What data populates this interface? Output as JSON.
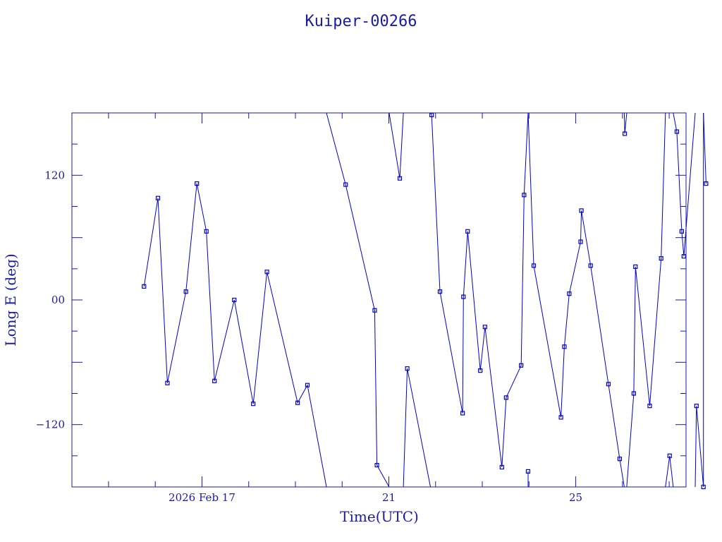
{
  "chart_data": {
    "type": "line",
    "title": "Kuiper-00266",
    "xlabel": "Time(UTC)",
    "ylabel": "Long E (deg)",
    "x_unit": "days",
    "xlim": [
      "2026-02-14 05:11",
      "2026-02-27 08:40"
    ],
    "ylim": [
      -180,
      180
    ],
    "y_ticks": [
      -120,
      0,
      120
    ],
    "y_tick_labels": [
      "−120",
      "00",
      "120"
    ],
    "x_tick_labels": [
      {
        "label": "2026 Feb 17",
        "date": "2026-02-17 00:00"
      },
      {
        "label": "21",
        "date": "2026-02-21 00:00"
      },
      {
        "label": "25",
        "date": "2026-02-25 00:00"
      }
    ],
    "x_minor_ticks": [
      "2026-02-15 00:00",
      "2026-02-16 00:00",
      "2026-02-18 00:00",
      "2026-02-19 00:00",
      "2026-02-20 00:00",
      "2026-02-22 00:00",
      "2026-02-23 00:00",
      "2026-02-24 00:00",
      "2026-02-26 00:00",
      "2026-02-27 00:00"
    ],
    "grid": false,
    "colors": {
      "axis": "#1a1aa6",
      "series": "#0000cc",
      "background": "#ffffff"
    },
    "series": [
      {
        "points": [
          [
            "2026-02-15 18:14",
            13
          ],
          [
            "2026-02-16 01:23",
            98
          ],
          [
            "2026-02-16 06:14",
            -80
          ],
          [
            "2026-02-16 15:45",
            8
          ],
          [
            "2026-02-16 21:22",
            112
          ],
          [
            "2026-02-17 02:16",
            66
          ],
          [
            "2026-02-17 06:25",
            -78
          ],
          [
            "2026-02-17 16:36",
            0
          ],
          [
            "2026-02-18 02:20",
            -100
          ],
          [
            "2026-02-18 09:22",
            27
          ],
          [
            "2026-02-19 01:08",
            -99
          ],
          [
            "2026-02-19 06:09",
            -82
          ],
          {
            "x": "2026-02-19 15:57",
            "y": -180,
            "break_after": true
          },
          {
            "x": "2026-02-19 15:57",
            "y": 180
          },
          [
            "2026-02-20 01:48",
            111
          ],
          [
            "2026-02-20 16:44",
            -10
          ],
          [
            "2026-02-20 17:52",
            -159
          ],
          {
            "x": "2026-02-21 00:09",
            "y": -180,
            "break_after": true
          },
          {
            "x": "2026-02-21 00:09",
            "y": 180
          },
          [
            "2026-02-21 05:37",
            117
          ],
          {
            "x": "2026-02-21 07:27",
            "y": 180,
            "break_after": true
          },
          {
            "x": "2026-02-21 07:27",
            "y": -180
          },
          [
            "2026-02-21 09:27",
            -66
          ],
          {
            "x": "2026-02-21 21:22",
            "y": -180,
            "break_after": true
          },
          {
            "x": "2026-02-21 21:22",
            "y": 180
          },
          [
            "2026-02-21 21:58",
            178
          ],
          [
            "2026-02-22 02:16",
            8
          ],
          [
            "2026-02-22 13:54",
            -109
          ],
          [
            "2026-02-22 14:19",
            3
          ],
          [
            "2026-02-22 16:29",
            66
          ],
          [
            "2026-02-22 22:58",
            -68
          ],
          [
            "2026-02-23 01:23",
            -26
          ],
          [
            "2026-02-23 10:04",
            -161
          ],
          [
            "2026-02-23 12:15",
            -94
          ],
          [
            "2026-02-23 19:58",
            -63
          ],
          [
            "2026-02-23 21:29",
            101
          ],
          {
            "x": "2026-02-23 23:31",
            "y": 180,
            "break_after": true
          },
          {
            "x": "2026-02-23 23:31",
            "y": -180
          },
          [
            "2026-02-23 23:31",
            -165
          ],
          {
            "x": "2026-02-23 23:31",
            "y": -180,
            "break_after": true
          },
          {
            "x": "2026-02-23 23:31",
            "y": 180
          },
          [
            "2026-02-24 02:26",
            33
          ],
          [
            "2026-02-24 16:25",
            -113
          ],
          [
            "2026-02-24 18:10",
            -45
          ],
          [
            "2026-02-24 20:40",
            6
          ],
          [
            "2026-02-25 02:31",
            56
          ],
          [
            "2026-02-25 02:54",
            86
          ],
          [
            "2026-02-25 07:39",
            33
          ],
          [
            "2026-02-25 16:47",
            -81
          ],
          [
            "2026-02-25 22:35",
            -153
          ],
          {
            "x": "2026-02-26 00:57",
            "y": -180,
            "break_after": true
          },
          {
            "x": "2026-02-26 00:57",
            "y": 180
          },
          [
            "2026-02-26 01:12",
            160
          ],
          {
            "x": "2026-02-26 02:12",
            "y": 180,
            "break_after": true
          },
          {
            "x": "2026-02-26 02:12",
            "y": -180
          },
          [
            "2026-02-26 05:49",
            -90
          ],
          [
            "2026-02-26 06:41",
            32
          ],
          [
            "2026-02-26 14:00",
            -102
          ],
          [
            "2026-02-26 19:53",
            40
          ],
          {
            "x": "2026-02-26 22:05",
            "y": 180,
            "break_after": true
          },
          {
            "x": "2026-02-26 22:05",
            "y": -180
          },
          [
            "2026-02-27 00:15",
            -150
          ],
          {
            "x": "2026-02-27 02:04",
            "y": -180,
            "break_after": true
          },
          {
            "x": "2026-02-27 02:04",
            "y": 180
          },
          [
            "2026-02-27 03:56",
            162
          ],
          [
            "2026-02-27 06:27",
            66
          ],
          [
            "2026-02-27 07:32",
            42
          ],
          {
            "x": "2026-02-27 13:23",
            "y": 180,
            "break_after": true
          },
          {
            "x": "2026-02-27 13:23",
            "y": -180
          },
          [
            "2026-02-27 14:01",
            -102
          ],
          [
            "2026-02-27 17:36",
            -180
          ],
          {
            "x": "2026-02-27 17:36",
            "y": 180,
            "break_after": true
          },
          {
            "x": "2026-02-27 17:36",
            "y": 180
          },
          [
            "2026-02-27 18:57",
            112
          ]
        ]
      }
    ]
  }
}
